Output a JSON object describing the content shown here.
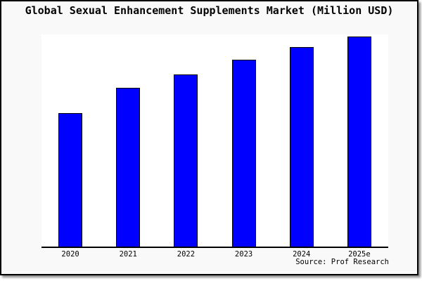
{
  "chart": {
    "title": "Global Sexual Enhancement Supplements Market (Million USD)",
    "source": "Source: Prof Research"
  },
  "chart_data": {
    "type": "bar",
    "title": "Global Sexual Enhancement Supplements Market (Million USD)",
    "categories": [
      "2020",
      "2021",
      "2022",
      "2023",
      "2024",
      "2025e"
    ],
    "values": [
      63,
      75,
      81,
      88,
      94,
      99
    ],
    "xlabel": "",
    "ylabel": "",
    "ylim": [
      0,
      100
    ],
    "grid": false,
    "legend": false,
    "y_axis_labels_shown": false,
    "bar_color": "#0000ff",
    "bar_border_color": "#000000",
    "plot_background": "#ffffff",
    "frame_background": "#f9f9f9",
    "frame_border_color": "#000000",
    "source": "Source: Prof Research"
  }
}
